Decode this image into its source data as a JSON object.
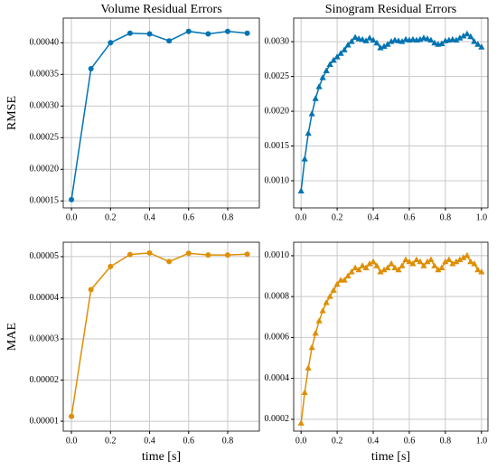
{
  "chart_data": [
    {
      "type": "line",
      "title": "Volume Residual Errors",
      "ylabel": "RMSE",
      "marker": "circle",
      "grid": true,
      "x": [
        0.0,
        0.1,
        0.2,
        0.3,
        0.4,
        0.5,
        0.6,
        0.7,
        0.8,
        0.9
      ],
      "series": [
        {
          "color": "#0173b2",
          "values": [
            0.000152,
            0.000359,
            0.0004,
            0.000415,
            0.000414,
            0.000403,
            0.000418,
            0.000414,
            0.000418,
            0.000415
          ]
        }
      ],
      "xlim": [
        -0.042,
        0.962
      ],
      "ylim": [
        0.000139,
        0.000439
      ],
      "xticks": [
        {
          "value": 0,
          "label": "0.0"
        },
        0.2,
        0.4,
        0.6,
        0.8
      ],
      "yticks": [
        0.00015,
        {
          "value": 0.0002,
          "label": "0.00020"
        },
        0.00025,
        {
          "value": 0.0003,
          "label": "0.00030"
        },
        0.00035,
        {
          "value": 0.0004,
          "label": "0.00040"
        }
      ]
    },
    {
      "type": "line",
      "title": "Sinogram Residual Errors",
      "marker": "triangle",
      "grid": true,
      "x": [
        0,
        0.02,
        0.04,
        0.06,
        0.08,
        0.1,
        0.12,
        0.14,
        0.16,
        0.18,
        0.2,
        0.22,
        0.24,
        0.26,
        0.28,
        0.3,
        0.32,
        0.34,
        0.36,
        0.38,
        0.4,
        0.42,
        0.44,
        0.46,
        0.48,
        0.5,
        0.52,
        0.54,
        0.56,
        0.58,
        0.6,
        0.62,
        0.64,
        0.66,
        0.68,
        0.7,
        0.72,
        0.74,
        0.76,
        0.78,
        0.8,
        0.82,
        0.84,
        0.86,
        0.88,
        0.9,
        0.92,
        0.94,
        0.96,
        0.98,
        1.0
      ],
      "series": [
        {
          "color": "#0173b2",
          "values": [
            0.00085,
            0.00131,
            0.00168,
            0.00196,
            0.00218,
            0.00235,
            0.00248,
            0.00258,
            0.00267,
            0.00273,
            0.00278,
            0.00283,
            0.00288,
            0.00295,
            0.003,
            0.00306,
            0.00304,
            0.00303,
            0.00301,
            0.00305,
            0.00302,
            0.00298,
            0.00291,
            0.00293,
            0.00296,
            0.003,
            0.00302,
            0.00301,
            0.003,
            0.00303,
            0.00302,
            0.00303,
            0.00302,
            0.00303,
            0.00305,
            0.00304,
            0.00302,
            0.00298,
            0.00296,
            0.00297,
            0.00301,
            0.00302,
            0.00303,
            0.00302,
            0.00305,
            0.00308,
            0.00311,
            0.00307,
            0.003,
            0.00296,
            0.00292
          ]
        }
      ],
      "xlim": [
        -0.041,
        1.036
      ],
      "ylim": [
        0.00061,
        0.00334
      ],
      "xticks": [
        {
          "value": 0,
          "label": "0.0"
        },
        0.2,
        0.4,
        0.6,
        0.8,
        {
          "value": 1,
          "label": "1.0"
        }
      ],
      "yticks": [
        {
          "value": 0.001,
          "label": "0.0010"
        },
        0.0015,
        {
          "value": 0.002,
          "label": "0.0020"
        },
        0.0025,
        {
          "value": 0.003,
          "label": "0.0030"
        }
      ]
    },
    {
      "type": "line",
      "ylabel": "MAE",
      "xlabel": "time [s]",
      "marker": "circle",
      "grid": true,
      "x": [
        0.0,
        0.1,
        0.2,
        0.3,
        0.4,
        0.5,
        0.6,
        0.7,
        0.8,
        0.9
      ],
      "series": [
        {
          "color": "#de8f05",
          "values": [
            1.12e-05,
            4.2e-05,
            4.76e-05,
            5.05e-05,
            5.09e-05,
            4.88e-05,
            5.08e-05,
            5.04e-05,
            5.04e-05,
            5.06e-05
          ]
        }
      ],
      "xlim": [
        -0.042,
        0.962
      ],
      "ylim": [
        7.6e-06,
        5.35e-05
      ],
      "xticks": [
        {
          "value": 0,
          "label": "0.0"
        },
        0.2,
        0.4,
        0.6,
        0.8
      ],
      "yticks": [
        1e-05,
        2e-05,
        3e-05,
        4e-05,
        5e-05
      ]
    },
    {
      "type": "line",
      "xlabel": "time [s]",
      "marker": "triangle",
      "grid": true,
      "x": [
        0,
        0.02,
        0.04,
        0.06,
        0.08,
        0.1,
        0.12,
        0.14,
        0.16,
        0.18,
        0.2,
        0.22,
        0.24,
        0.26,
        0.28,
        0.3,
        0.32,
        0.34,
        0.36,
        0.38,
        0.4,
        0.42,
        0.44,
        0.46,
        0.48,
        0.5,
        0.52,
        0.54,
        0.56,
        0.58,
        0.6,
        0.62,
        0.64,
        0.66,
        0.68,
        0.7,
        0.72,
        0.74,
        0.76,
        0.78,
        0.8,
        0.82,
        0.84,
        0.86,
        0.88,
        0.9,
        0.92,
        0.94,
        0.96,
        0.98,
        1.0
      ],
      "series": [
        {
          "color": "#de8f05",
          "values": [
            0.00018,
            0.00033,
            0.00045,
            0.00055,
            0.00062,
            0.00068,
            0.00073,
            0.00077,
            0.0008,
            0.00083,
            0.00086,
            0.00088,
            0.00088,
            0.0009,
            0.00092,
            0.00094,
            0.00093,
            0.00095,
            0.00094,
            0.00096,
            0.00097,
            0.00095,
            0.00092,
            0.00093,
            0.00094,
            0.00096,
            0.00094,
            0.00093,
            0.00095,
            0.00098,
            0.00097,
            0.00096,
            0.00098,
            0.00097,
            0.00095,
            0.00097,
            0.00098,
            0.00095,
            0.00093,
            0.00094,
            0.00097,
            0.00098,
            0.00096,
            0.00097,
            0.00098,
            0.00099,
            0.001,
            0.00097,
            0.00096,
            0.00093,
            0.00092
          ]
        }
      ],
      "xlim": [
        -0.041,
        1.036
      ],
      "ylim": [
        0.000142,
        0.001066
      ],
      "xticks": [
        {
          "value": 0,
          "label": "0.0"
        },
        0.2,
        0.4,
        0.6,
        0.8,
        {
          "value": 1,
          "label": "1.0"
        }
      ],
      "yticks": [
        0.0002,
        0.0004,
        0.0006,
        0.0008,
        {
          "value": 0.001,
          "label": "0.0010"
        }
      ]
    }
  ]
}
